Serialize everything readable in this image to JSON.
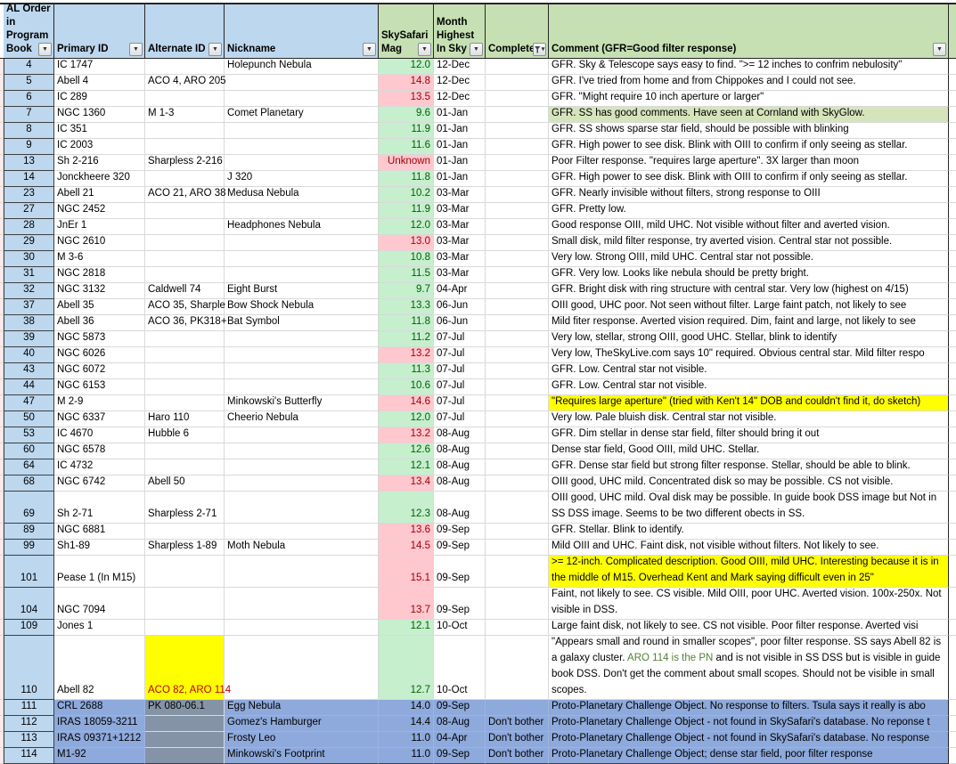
{
  "colors": {
    "header_blue": "#BDD7EE",
    "header_green": "#C6E0B4",
    "mag_good_bg": "#C6EFCE",
    "mag_good_text": "#006100",
    "mag_bad_bg": "#FFC7CE",
    "mag_bad_text": "#9C0006",
    "highlight_yellow": "#FFFF00",
    "highlight_green": "#D6E4BC",
    "blue_row_bg": "#8EA9DB",
    "gray_cell_bg": "#8494A6",
    "alt_red_text": "#C00000",
    "comment_green_text": "#538135"
  },
  "header": {
    "columns": [
      {
        "key": "al-order",
        "label": "AL Order in Program Book",
        "scheme": "blue",
        "filter": "arrow"
      },
      {
        "key": "primary-id",
        "label": "Primary ID",
        "scheme": "blue",
        "filter": "arrow"
      },
      {
        "key": "alternate-id",
        "label": "Alternate ID",
        "scheme": "blue",
        "filter": "arrow"
      },
      {
        "key": "nickname",
        "label": "Nickname",
        "scheme": "blue",
        "filter": "arrow"
      },
      {
        "key": "skysafari-mag",
        "label": "SkySafari Mag",
        "scheme": "green",
        "filter": "arrow"
      },
      {
        "key": "month-highest",
        "label": "Month Highest In Sky",
        "scheme": "green",
        "filter": "arrow"
      },
      {
        "key": "complete",
        "label": "Complete",
        "scheme": "green",
        "filter": "funnel"
      },
      {
        "key": "comment",
        "label": "Comment (GFR=Good filter response)",
        "scheme": "green",
        "filter": "arrow"
      }
    ]
  },
  "table": {
    "rows": [
      {
        "al": "4",
        "primary": "IC 1747",
        "alt": "",
        "nick": "Holepunch Nebula",
        "mag": "12.0",
        "mag_style": "good",
        "month": "12-Dec",
        "complete": "",
        "lines": 1,
        "comment": "GFR. Sky & Telescope says easy to find. \">= 12 inches to confrim nebulosity\""
      },
      {
        "al": "5",
        "primary": "Abell 4",
        "alt": "ACO 4, ARO 205",
        "nick": "",
        "mag": "14.8",
        "mag_style": "bad",
        "month": "12-Dec",
        "complete": "",
        "lines": 1,
        "comment": "GFR.  I've tried from home and from Chippokes and I could not see."
      },
      {
        "al": "6",
        "primary": "IC 289",
        "alt": "",
        "nick": "",
        "mag": "13.5",
        "mag_style": "bad",
        "month": "12-Dec",
        "complete": "",
        "lines": 1,
        "comment": "GFR. \"Might require 10 inch aperture or larger\""
      },
      {
        "al": "7",
        "primary": "NGC 1360",
        "alt": "M 1-3",
        "nick": "Comet Planetary",
        "mag": "9.6",
        "mag_style": "good",
        "month": "01-Jan",
        "complete": "",
        "lines": 1,
        "comment": "GFR. SS has good comments. Have seen at Cornland with SkyGlow.",
        "comment_style": "green"
      },
      {
        "al": "8",
        "primary": "IC 351",
        "alt": "",
        "nick": "",
        "mag": "11.9",
        "mag_style": "good",
        "month": "01-Jan",
        "complete": "",
        "lines": 1,
        "comment": "GFR. SS shows sparse star field, should be possible with blinking"
      },
      {
        "al": "9",
        "primary": "IC 2003",
        "alt": "",
        "nick": "",
        "mag": "11.6",
        "mag_style": "good",
        "month": "01-Jan",
        "complete": "",
        "lines": 1,
        "comment": "GFR. High power to see disk.  Blink with OIII to confirm if only seeing as stellar."
      },
      {
        "al": "13",
        "primary": "Sh 2-216",
        "alt": "Sharpless 2-216",
        "nick": "",
        "mag": "Unknown",
        "mag_style": "bad",
        "month": "01-Jan",
        "complete": "",
        "lines": 1,
        "comment": "Poor Filter response.  \"requires large aperture\".  3X larger than moon"
      },
      {
        "al": "14",
        "primary": "Jonckheere 320",
        "alt": "",
        "nick": "J 320",
        "mag": "11.8",
        "mag_style": "good",
        "month": "01-Jan",
        "complete": "",
        "lines": 1,
        "comment": "GFR. High power to see disk. Blink with OIII to confirm if only seeing as stellar."
      },
      {
        "al": "23",
        "primary": "Abell 21",
        "alt": "ACO 21, ARO 38",
        "nick": "Medusa Nebula",
        "mag": "10.2",
        "mag_style": "good",
        "month": "03-Mar",
        "complete": "",
        "lines": 1,
        "comment": "GFR. Nearly invisible without filters, strong response to OIII"
      },
      {
        "al": "27",
        "primary": "NGC 2452",
        "alt": "",
        "nick": "",
        "mag": "11.9",
        "mag_style": "good",
        "month": "03-Mar",
        "complete": "",
        "lines": 1,
        "comment": "GFR. Pretty low."
      },
      {
        "al": "28",
        "primary": "JnEr 1",
        "alt": "",
        "nick": "Headphones Nebula",
        "mag": "12.0",
        "mag_style": "good",
        "month": "03-Mar",
        "complete": "",
        "lines": 1,
        "comment": "Good response OIII, mild UHC.  Not visible without filter and averted vision."
      },
      {
        "al": "29",
        "primary": "NGC 2610",
        "alt": "",
        "nick": "",
        "mag": "13.0",
        "mag_style": "bad",
        "month": "03-Mar",
        "complete": "",
        "lines": 1,
        "comment": "Small disk, mild filter response, try averted vision. Central star not possible."
      },
      {
        "al": "30",
        "primary": "M 3-6",
        "alt": "",
        "nick": "",
        "mag": "10.8",
        "mag_style": "good",
        "month": "03-Mar",
        "complete": "",
        "lines": 1,
        "comment": "Very low. Strong OIII, mild UHC. Central star not possible."
      },
      {
        "al": "31",
        "primary": "NGC 2818",
        "alt": "",
        "nick": "",
        "mag": "11.5",
        "mag_style": "good",
        "month": "03-Mar",
        "complete": "",
        "lines": 1,
        "comment": "GFR.  Very low. Looks like nebula should be pretty bright."
      },
      {
        "al": "32",
        "primary": "NGC 3132",
        "alt": "Caldwell 74",
        "nick": "Eight Burst",
        "mag": "9.7",
        "mag_style": "good",
        "month": "04-Apr",
        "complete": "",
        "lines": 1,
        "comment": "GFR.  Bright disk with ring structure with central star.  Very low (highest on 4/15)"
      },
      {
        "al": "37",
        "primary": "Abell 35",
        "alt": "ACO 35, Sharple",
        "nick": "Bow Shock Nebula",
        "mag": "13.3",
        "mag_style": "good",
        "month": "06-Jun",
        "complete": "",
        "lines": 1,
        "comment": "OIII good, UHC poor.  Not seen without filter. Large faint patch, not likely to see"
      },
      {
        "al": "38",
        "primary": "Abell 36",
        "alt": "ACO 36, PK318+",
        "nick": "Bat Symbol",
        "mag": "11.8",
        "mag_style": "good",
        "month": "06-Jun",
        "complete": "",
        "lines": 1,
        "comment": "Mild fiter response. Averted vision required. Dim, faint and large, not likely to see"
      },
      {
        "al": "39",
        "primary": "NGC 5873",
        "alt": "",
        "nick": "",
        "mag": "11.2",
        "mag_style": "good",
        "month": "07-Jul",
        "complete": "",
        "lines": 1,
        "comment": "Very low, stellar, strong  OIII, good UHC. Stellar, blink to identify"
      },
      {
        "al": "40",
        "primary": "NGC 6026",
        "alt": "",
        "nick": "",
        "mag": "13.2",
        "mag_style": "bad",
        "month": "07-Jul",
        "complete": "",
        "lines": 1,
        "comment": "Very low, TheSkyLive.com says 10\" required. Obvious central star. Mild filter respo"
      },
      {
        "al": "43",
        "primary": "NGC 6072",
        "alt": "",
        "nick": "",
        "mag": "11.3",
        "mag_style": "good",
        "month": "07-Jul",
        "complete": "",
        "lines": 1,
        "comment": "GFR. Low. Central star not visible."
      },
      {
        "al": "44",
        "primary": "NGC 6153",
        "alt": "",
        "nick": "",
        "mag": "10.6",
        "mag_style": "good",
        "month": "07-Jul",
        "complete": "",
        "lines": 1,
        "comment": "GFR. Low. Central star not visible."
      },
      {
        "al": "47",
        "primary": "M 2-9",
        "alt": "",
        "nick": "Minkowski's Butterfly",
        "mag": "14.6",
        "mag_style": "bad",
        "month": "07-Jul",
        "complete": "",
        "lines": 1,
        "comment": "\"Requires large aperture\" (tried with Ken't 14\" DOB and couldn't find it, do sketch)",
        "comment_style": "yellow"
      },
      {
        "al": "50",
        "primary": "NGC 6337",
        "alt": "Haro 110",
        "nick": "Cheerio Nebula",
        "mag": "12.0",
        "mag_style": "good",
        "month": "07-Jul",
        "complete": "",
        "lines": 1,
        "comment": "Very low. Pale bluish disk. Central star not visible."
      },
      {
        "al": "53",
        "primary": "IC 4670",
        "alt": "Hubble 6",
        "nick": "",
        "mag": "13.2",
        "mag_style": "bad",
        "month": "08-Aug",
        "complete": "",
        "lines": 1,
        "comment": "GFR. Dim stellar in dense star field, filter should bring it out"
      },
      {
        "al": "60",
        "primary": "NGC 6578",
        "alt": "",
        "nick": "",
        "mag": "12.6",
        "mag_style": "good",
        "month": "08-Aug",
        "complete": "",
        "lines": 1,
        "comment": "Dense star field, Good OIII, mild UHC. Stellar."
      },
      {
        "al": "64",
        "primary": "IC 4732",
        "alt": "",
        "nick": "",
        "mag": "12.1",
        "mag_style": "good",
        "month": "08-Aug",
        "complete": "",
        "lines": 1,
        "comment": "GFR. Dense star field but strong filter response. Stellar, should be able to blink."
      },
      {
        "al": "68",
        "primary": "NGC 6742",
        "alt": "Abell 50",
        "nick": "",
        "mag": "13.4",
        "mag_style": "bad",
        "month": "08-Aug",
        "complete": "",
        "lines": 1,
        "comment": "OIII good, UHC mild. Concentrated disk so may be possible. CS not visible."
      },
      {
        "al": "69",
        "primary": "Sh 2-71",
        "alt": "Sharpless 2-71",
        "nick": "",
        "mag": "12.3",
        "mag_style": "good",
        "month": "08-Aug",
        "complete": "",
        "lines": 2,
        "comment": "OIII good, UHC mild. Oval disk may be possible. In guide book DSS image but Not in SS DSS image. Seems to be two different obects in SS."
      },
      {
        "al": "89",
        "primary": "NGC 6881",
        "alt": "",
        "nick": "",
        "mag": "13.6",
        "mag_style": "bad",
        "month": "09-Sep",
        "complete": "",
        "lines": 1,
        "comment": "GFR.  Stellar. Blink to identify."
      },
      {
        "al": "99",
        "primary": "Sh1-89",
        "alt": "Sharpless 1-89",
        "nick": "Moth Nebula",
        "mag": "14.5",
        "mag_style": "bad",
        "month": "09-Sep",
        "complete": "",
        "lines": 1,
        "comment": "Mild OIII and UHC. Faint disk, not visible without filters. Not likely to see."
      },
      {
        "al": "101",
        "primary": "Pease 1 (In M15)",
        "alt": "",
        "nick": "",
        "mag": "15.1",
        "mag_style": "bad",
        "month": "09-Sep",
        "complete": "",
        "lines": 2,
        "comment": ">= 12-inch. Complicated description. Good OIII, mild UHC. Interesting because it is in the middle of M15. Overhead Kent and Mark saying difficult even in 25\"",
        "comment_style": "yellow"
      },
      {
        "al": "104",
        "primary": "NGC 7094",
        "alt": "",
        "nick": "",
        "mag": "13.7",
        "mag_style": "bad",
        "month": "09-Sep",
        "complete": "",
        "lines": 2,
        "comment": "Faint, not likely to see.  CS visible. Mild OIII, poor UHC.  Averted vision.  100x-250x. Not visible in DSS."
      },
      {
        "al": "109",
        "primary": "Jones 1",
        "alt": "",
        "nick": "",
        "mag": "12.1",
        "mag_style": "good",
        "month": "10-Oct",
        "complete": "",
        "lines": 1,
        "comment": "Large faint disk, not likely to see.  CS not visible.  Poor filter response.  Averted visi"
      },
      {
        "al": "110",
        "primary": "Abell 82",
        "alt": "ACO 82, ARO 114",
        "nick": "",
        "mag": "12.7",
        "mag_style": "good",
        "month": "10-Oct",
        "complete": "",
        "lines": 4,
        "alt_style": "yellow",
        "comment_parts": [
          {
            "text": "\"Appears small and round in smaller scopes\", poor filter response.  SS says Abell 82 is a galaxy cluster. ",
            "green": false
          },
          {
            "text": "ARO 114 is the PN",
            "green": true
          },
          {
            "text": " and is not visible in SS DSS but is visible in guide book DSS. Don't get the comment about small scopes.  Should not be visible in small scopes.",
            "green": false
          }
        ]
      },
      {
        "al": "111",
        "primary": "CRL 2688",
        "alt": "PK 080-06.1",
        "nick": "Egg Nebula",
        "mag": "14.0",
        "mag_style": "plain",
        "month": "09-Sep",
        "complete": "",
        "lines": 1,
        "row_style": "blue",
        "alt_style": "gray",
        "comment": "Proto-Planetary Challenge Object.  No response to filters. Tsula says it really is abo"
      },
      {
        "al": "112",
        "primary": "IRAS 18059-3211",
        "alt": "",
        "nick": "Gomez's Hamburger",
        "mag": "14.4",
        "mag_style": "plain",
        "month": "08-Aug",
        "complete": "Don't bother",
        "lines": 1,
        "row_style": "blue",
        "alt_style": "gray",
        "comment": "Proto-Planetary Challenge Object - not found in SkySafari's database.  No reponse t"
      },
      {
        "al": "113",
        "primary": "IRAS 09371+1212",
        "alt": "",
        "nick": "Frosty Leo",
        "mag": "11.0",
        "mag_style": "plain",
        "month": "04-Apr",
        "complete": "Don't bother",
        "lines": 1,
        "row_style": "blue",
        "alt_style": "gray",
        "comment": "Proto-Planetary Challenge Object - not found in SkySafari's database.  No response"
      },
      {
        "al": "114",
        "primary": "M1-92",
        "alt": "",
        "nick": "Minkowski's Footprint",
        "mag": "11.0",
        "mag_style": "plain",
        "month": "09-Sep",
        "complete": "Don't bother",
        "lines": 1,
        "row_style": "blue",
        "alt_style": "gray",
        "comment": "Proto-Planetary Challenge Object; dense star field, poor filter response"
      }
    ]
  }
}
